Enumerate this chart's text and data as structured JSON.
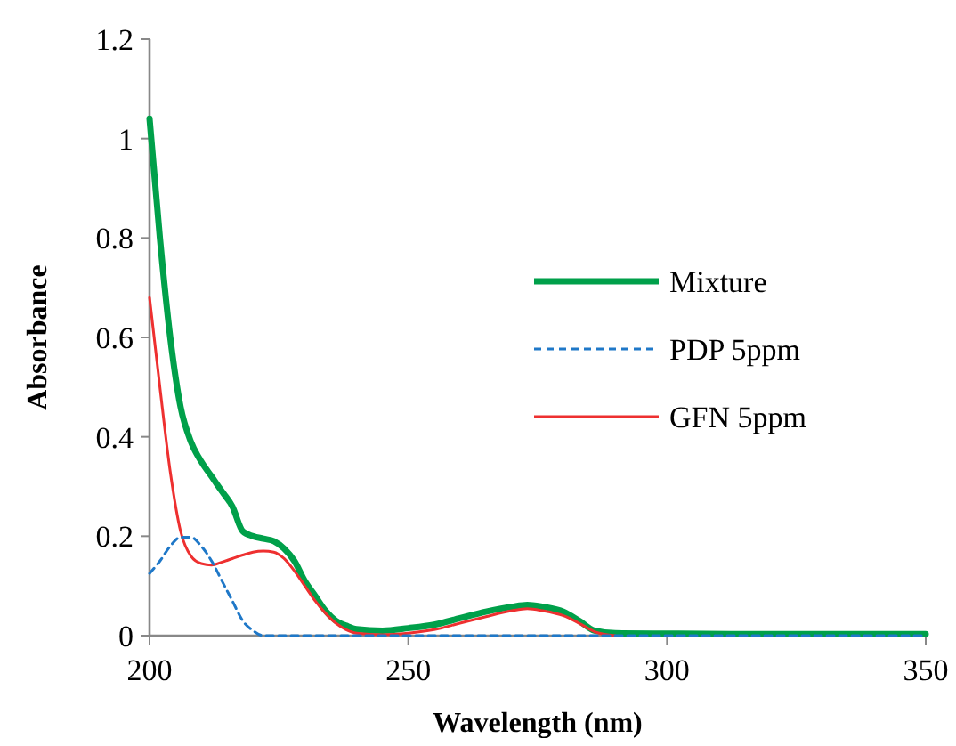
{
  "chart_data": {
    "type": "line",
    "xlabel": "Wavelength (nm)",
    "ylabel": "Absorbance",
    "xlim": [
      200,
      350
    ],
    "xticks": [
      200,
      250,
      300,
      350
    ],
    "ylim": [
      0,
      1.2
    ],
    "yticks": [
      0,
      0.2,
      0.4,
      0.6,
      0.8,
      1,
      1.2
    ],
    "legend": "right",
    "grid": false,
    "marker": "none",
    "x": [
      200,
      202,
      204,
      206,
      208,
      210,
      212,
      214,
      216,
      218,
      220,
      222,
      224,
      226,
      228,
      230,
      232,
      234,
      236,
      238,
      240,
      245,
      250,
      255,
      260,
      265,
      270,
      273,
      276,
      280,
      283,
      286,
      290,
      300,
      320,
      350
    ],
    "series": [
      {
        "name": "Mixture",
        "color": "#00a04a",
        "line_style": "solid",
        "values": [
          1.04,
          0.8,
          0.6,
          0.46,
          0.39,
          0.35,
          0.32,
          0.29,
          0.26,
          0.21,
          0.2,
          0.195,
          0.19,
          0.175,
          0.15,
          0.11,
          0.08,
          0.05,
          0.03,
          0.02,
          0.013,
          0.01,
          0.015,
          0.022,
          0.035,
          0.048,
          0.058,
          0.062,
          0.058,
          0.048,
          0.03,
          0.01,
          0.005,
          0.004,
          0.003,
          0.003
        ]
      },
      {
        "name": "PDP 5ppm",
        "color": "#1f78c8",
        "line_style": "dashed",
        "x": [
          200,
          202,
          204,
          206,
          208,
          210,
          212,
          214,
          216,
          218,
          220,
          222,
          230,
          250,
          270,
          290,
          320,
          350
        ],
        "values": [
          0.125,
          0.15,
          0.18,
          0.198,
          0.198,
          0.18,
          0.15,
          0.11,
          0.07,
          0.03,
          0.01,
          0.0,
          0.0,
          0.0,
          0.0,
          0.0,
          0.0,
          0.0
        ]
      },
      {
        "name": "GFN 5ppm",
        "color": "#ee3030",
        "line_style": "solid",
        "x": [
          200,
          202,
          204,
          206,
          208,
          210,
          212,
          214,
          216,
          218,
          220,
          222,
          224,
          226,
          228,
          230,
          232,
          234,
          236,
          238,
          240,
          245,
          250,
          255,
          260,
          265,
          270,
          273,
          276,
          280,
          283,
          286,
          290
        ],
        "values": [
          0.68,
          0.5,
          0.33,
          0.21,
          0.16,
          0.145,
          0.142,
          0.148,
          0.155,
          0.162,
          0.168,
          0.17,
          0.168,
          0.155,
          0.13,
          0.1,
          0.07,
          0.045,
          0.025,
          0.012,
          0.005,
          0.002,
          0.005,
          0.012,
          0.025,
          0.038,
          0.05,
          0.054,
          0.05,
          0.04,
          0.025,
          0.008,
          0.0
        ]
      }
    ]
  }
}
